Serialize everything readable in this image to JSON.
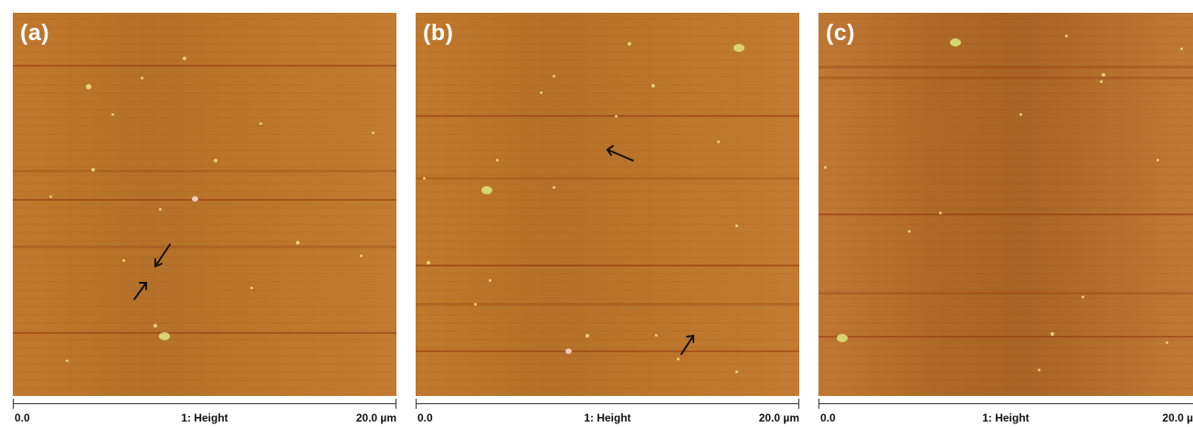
{
  "panels": [
    {
      "label": "(a)",
      "scale": {
        "start": "0.0",
        "channel": "1: Height",
        "end": "20.0 µm"
      }
    },
    {
      "label": "(b)",
      "scale": {
        "start": "0.0",
        "channel": "1: Height",
        "end": "20.0 µm"
      }
    },
    {
      "label": "(c)",
      "scale": {
        "start": "0.0",
        "channel": "1: Height",
        "end": "20.0 µ"
      }
    }
  ],
  "colors": {
    "surface": "#c0782c",
    "particles": "#e8d26a",
    "arrows": "#111111"
  }
}
